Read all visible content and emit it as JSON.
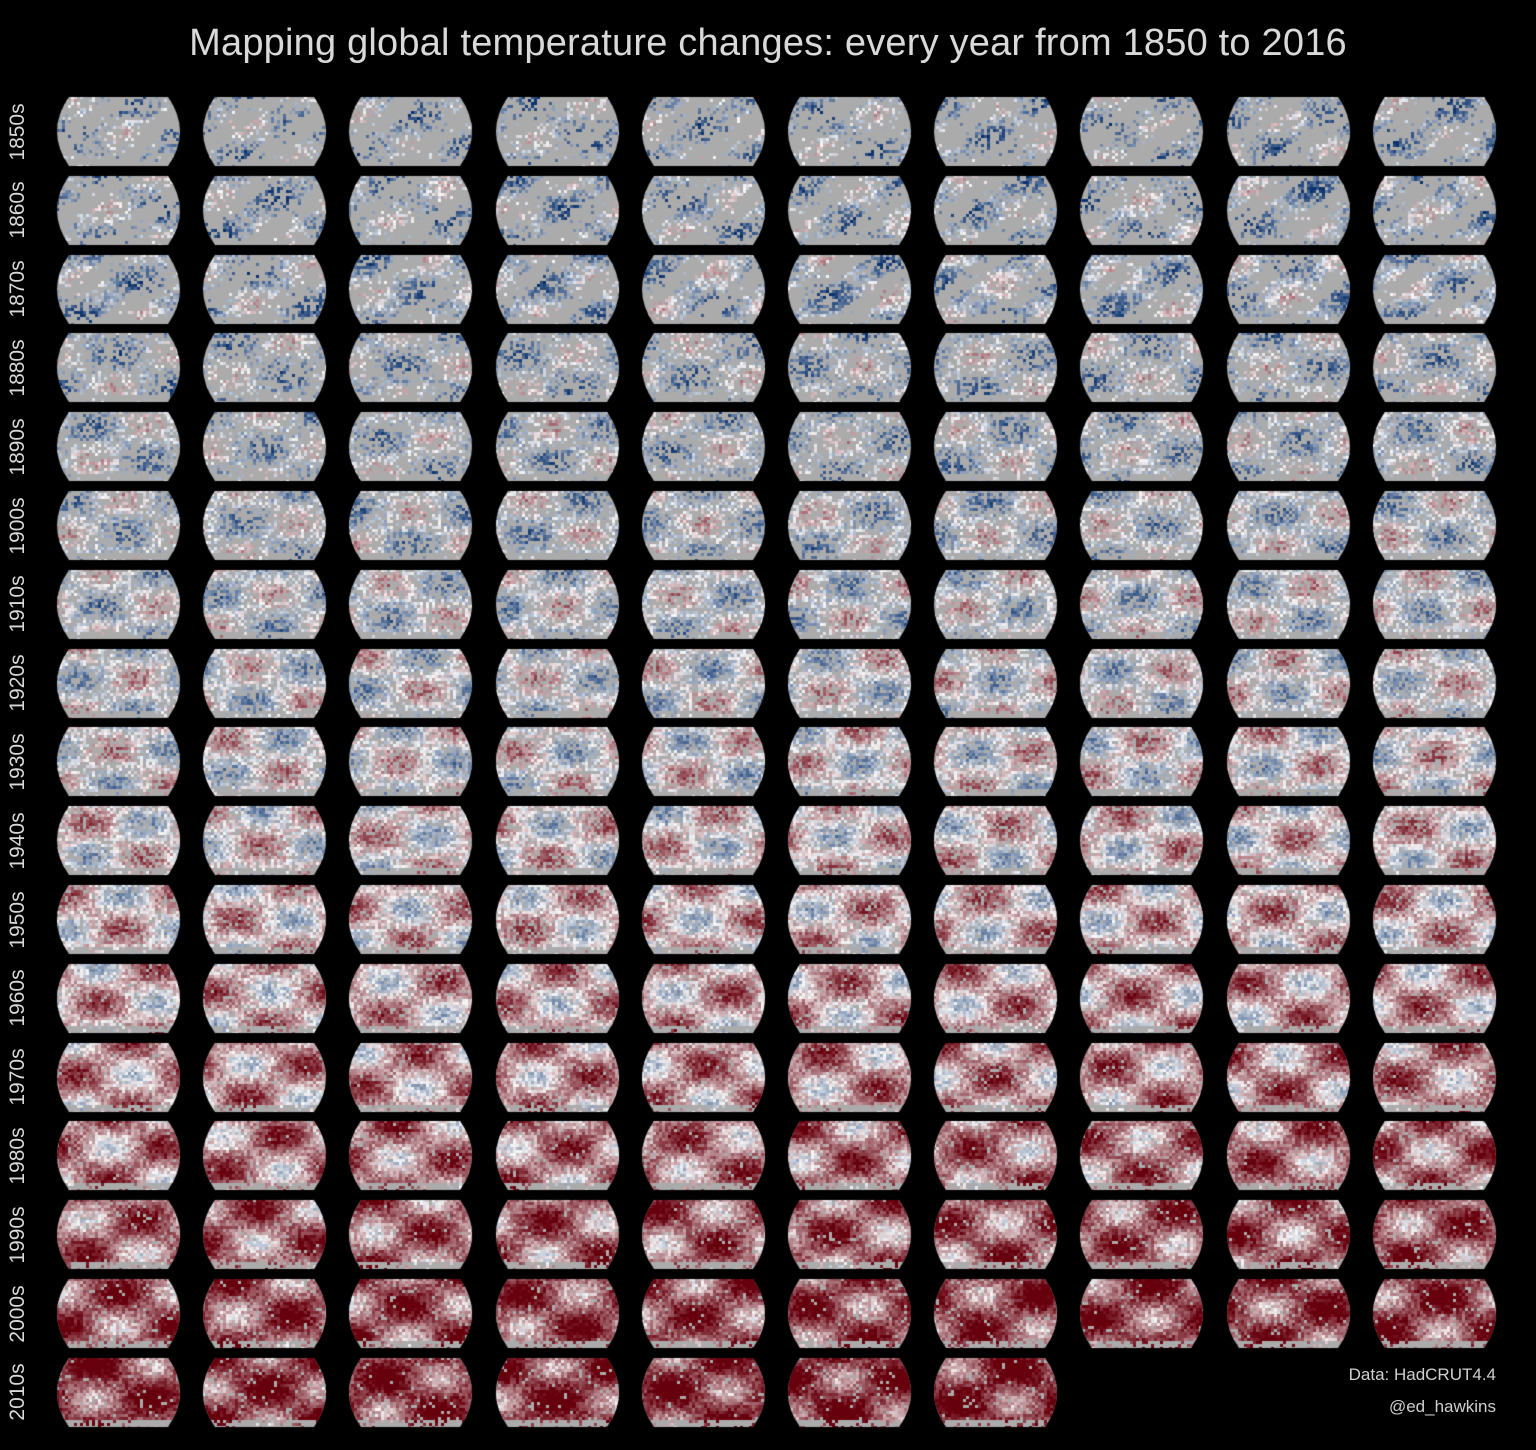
{
  "title": "Mapping global temperature changes: every year from 1850 to 2016",
  "first_year": 1850,
  "last_year": 2016,
  "rows": [
    {
      "label": "1850s"
    },
    {
      "label": "1860s"
    },
    {
      "label": "1870s"
    },
    {
      "label": "1880s"
    },
    {
      "label": "1890s"
    },
    {
      "label": "1900s"
    },
    {
      "label": "1910s"
    },
    {
      "label": "1920s"
    },
    {
      "label": "1930s"
    },
    {
      "label": "1940s"
    },
    {
      "label": "1950s"
    },
    {
      "label": "1960s"
    },
    {
      "label": "1970s"
    },
    {
      "label": "1980s"
    },
    {
      "label": "1990s"
    },
    {
      "label": "2000s"
    },
    {
      "label": "2010s"
    }
  ],
  "credits": {
    "data": "Data: HadCRUT4.4",
    "author": "@ed_hawkins"
  },
  "colors": {
    "background": "#000000",
    "missing": "#ababab",
    "cold": "#08306b",
    "neutral": "#f7f7f7",
    "warm": "#67000d",
    "text": "#d9d9d9"
  }
}
